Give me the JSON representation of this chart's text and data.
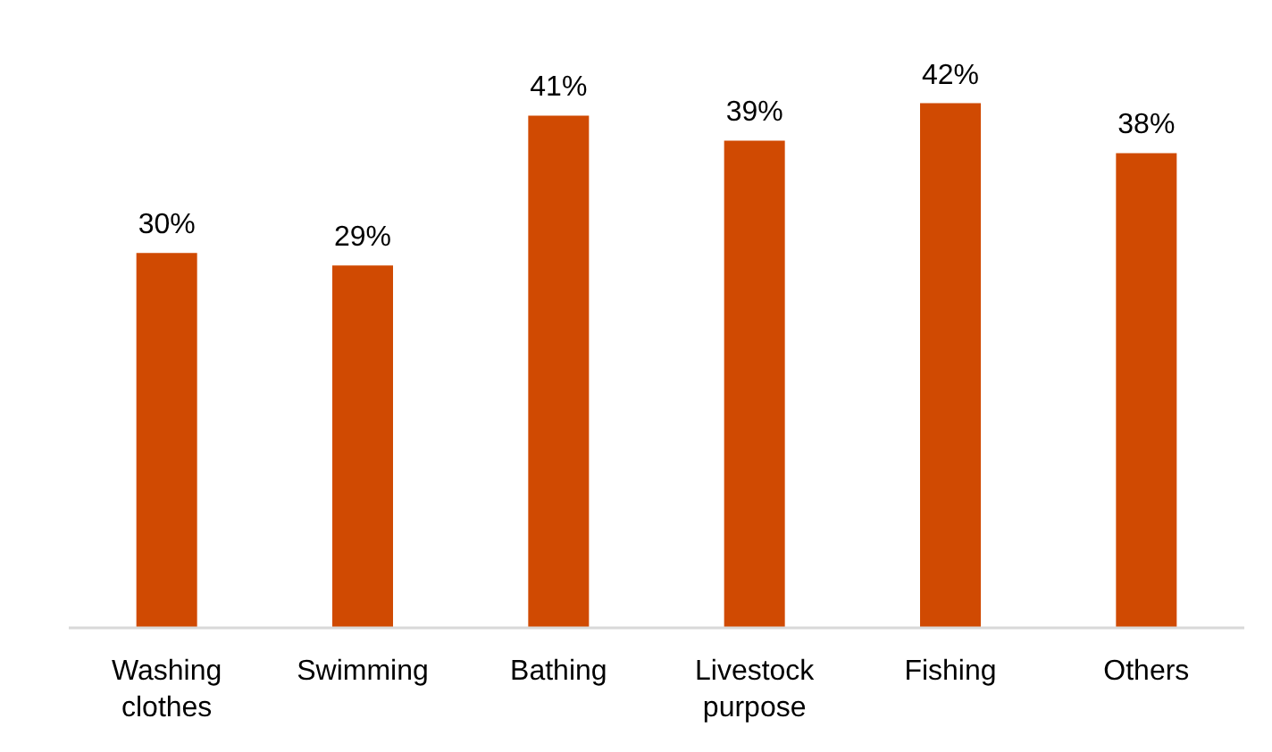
{
  "chart_data": {
    "type": "bar",
    "categories": [
      "Washing clothes",
      "Swimming",
      "Bathing",
      "Livestock purpose",
      "Fishing",
      "Others"
    ],
    "values": [
      30,
      29,
      41,
      39,
      42,
      38
    ],
    "color": "#d04a02",
    "value_labels": [
      "30%",
      "29%",
      "41%",
      "39%",
      "42%",
      "38%"
    ]
  }
}
